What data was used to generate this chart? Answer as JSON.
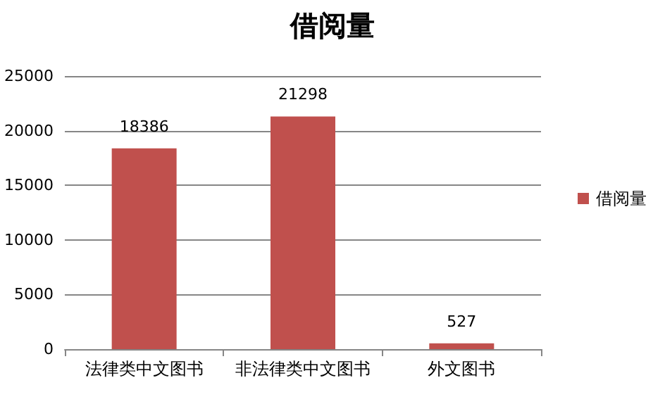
{
  "chart_data": {
    "type": "bar",
    "title": "借阅量",
    "categories": [
      "法律类中文图书",
      "非法律类中文图书",
      "外文图书"
    ],
    "series": [
      {
        "name": "借阅量",
        "color": "#c0504d",
        "values": [
          18386,
          21298,
          527
        ]
      }
    ],
    "ylim": [
      0,
      25000
    ],
    "yticks": [
      0,
      5000,
      10000,
      15000,
      20000,
      25000
    ],
    "grid": "y",
    "legend": "right",
    "data_labels": true
  }
}
